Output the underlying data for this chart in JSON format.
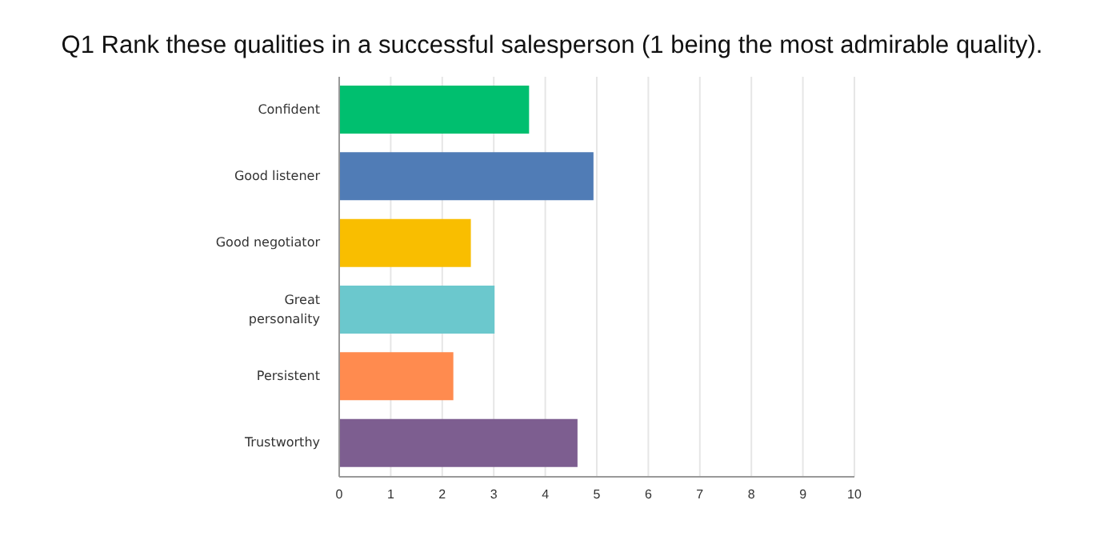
{
  "chart_data": {
    "type": "bar",
    "orientation": "horizontal",
    "title": "Q1 Rank these qualities in a successful salesperson (1 being the most admirable quality).",
    "categories": [
      "Confident",
      "Good listener",
      "Good negotiator",
      "Great personality",
      "Persistent",
      "Trustworthy"
    ],
    "values": [
      3.67,
      4.92,
      2.54,
      3.0,
      2.2,
      4.61
    ],
    "colors": [
      "#00bf6f",
      "#507cb6",
      "#f9be00",
      "#6bc8cd",
      "#ff8b4f",
      "#7d5e90"
    ],
    "xlim": [
      0,
      10
    ],
    "xticks": [
      0,
      1,
      2,
      3,
      4,
      5,
      6,
      7,
      8,
      9,
      10
    ],
    "grid": "x"
  }
}
